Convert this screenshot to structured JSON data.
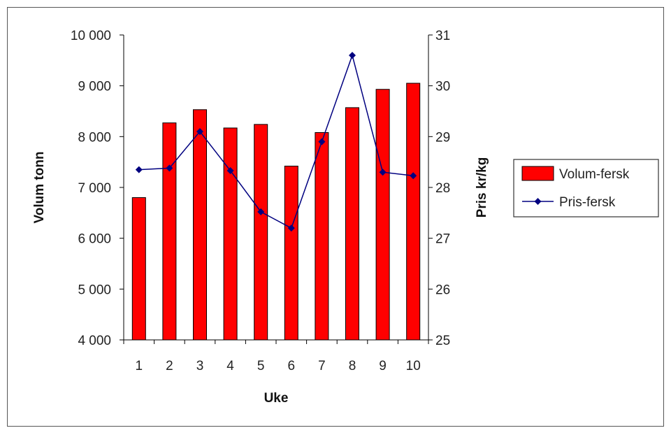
{
  "chart_data": {
    "type": "bar",
    "categories": [
      "1",
      "2",
      "3",
      "4",
      "5",
      "6",
      "7",
      "8",
      "9",
      "10"
    ],
    "xlabel": "Uke",
    "ylabel": "Volum tonn",
    "y2label": "Pris kr/kg",
    "ylim": [
      4000,
      10000
    ],
    "y2lim": [
      25,
      31
    ],
    "yticks": [
      "4 000",
      "5 000",
      "6 000",
      "7 000",
      "8 000",
      "9 000",
      "10 000"
    ],
    "y2ticks": [
      "25",
      "26",
      "27",
      "28",
      "29",
      "30",
      "31"
    ],
    "series": [
      {
        "name": "Volum-fersk",
        "type": "bar",
        "axis": "left",
        "color": "#ff0000",
        "values": [
          6800,
          8270,
          8530,
          8170,
          8240,
          7420,
          8080,
          8570,
          8930,
          9050
        ]
      },
      {
        "name": "Pris-fersk",
        "type": "line",
        "axis": "right",
        "color": "#000080",
        "values": [
          28.35,
          28.38,
          29.1,
          28.33,
          27.52,
          27.2,
          28.9,
          30.6,
          28.3,
          28.23
        ]
      }
    ],
    "legend_position": "right",
    "grid": false
  }
}
